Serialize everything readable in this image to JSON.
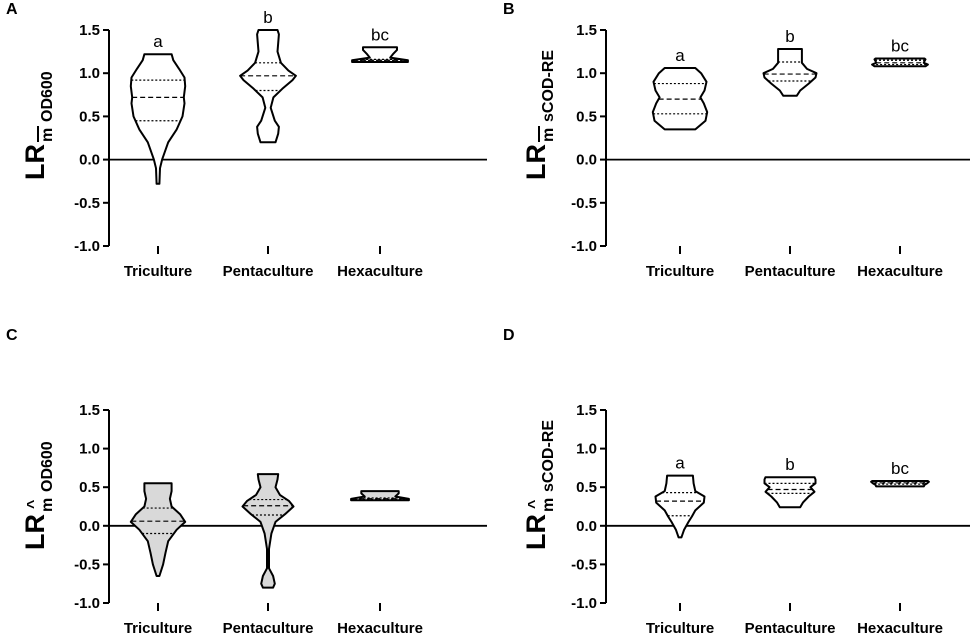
{
  "chart_data": [
    {
      "type": "violin",
      "panel_label": "A",
      "ylabel": {
        "main": "LR",
        "sub": "m",
        "sub_mark": "bar",
        "metric": "OD600"
      },
      "ylim": [
        -1.0,
        1.5
      ],
      "yticks": [
        "-1.0",
        "-0.5",
        "0.0",
        "0.5",
        "1.0",
        "1.5"
      ],
      "categories": [
        "Triculture",
        "Pentaculture",
        "Hexaculture"
      ],
      "fill": "#ffffff",
      "series": [
        {
          "min": -0.28,
          "max": 1.22,
          "q1": 0.45,
          "median": 0.72,
          "q3": 0.92,
          "letter": "a",
          "profile": [
            [
              -0.28,
              0.04
            ],
            [
              -0.1,
              0.06
            ],
            [
              0.0,
              0.12
            ],
            [
              0.2,
              0.3
            ],
            [
              0.35,
              0.55
            ],
            [
              0.5,
              0.72
            ],
            [
              0.65,
              0.78
            ],
            [
              0.72,
              0.76
            ],
            [
              0.85,
              0.8
            ],
            [
              0.95,
              0.78
            ],
            [
              1.05,
              0.62
            ],
            [
              1.15,
              0.45
            ],
            [
              1.22,
              0.4
            ]
          ]
        },
        {
          "min": 0.2,
          "max": 1.5,
          "q1": 0.8,
          "median": 0.97,
          "q3": 1.12,
          "letter": "b",
          "profile": [
            [
              0.2,
              0.22
            ],
            [
              0.3,
              0.3
            ],
            [
              0.38,
              0.32
            ],
            [
              0.45,
              0.2
            ],
            [
              0.6,
              0.08
            ],
            [
              0.72,
              0.16
            ],
            [
              0.82,
              0.42
            ],
            [
              0.92,
              0.72
            ],
            [
              0.97,
              0.82
            ],
            [
              1.03,
              0.6
            ],
            [
              1.12,
              0.38
            ],
            [
              1.25,
              0.28
            ],
            [
              1.35,
              0.3
            ],
            [
              1.45,
              0.32
            ],
            [
              1.5,
              0.28
            ]
          ]
        },
        {
          "min": 1.13,
          "max": 1.3,
          "q1": 1.15,
          "median": 1.15,
          "q3": 1.16,
          "letter": "bc",
          "profile": [
            [
              1.13,
              0.82
            ],
            [
              1.15,
              0.82
            ],
            [
              1.18,
              0.3
            ],
            [
              1.22,
              0.38
            ],
            [
              1.27,
              0.5
            ],
            [
              1.3,
              0.5
            ]
          ]
        }
      ]
    },
    {
      "type": "violin",
      "panel_label": "B",
      "ylabel": {
        "main": "LR",
        "sub": "m",
        "sub_mark": "bar",
        "metric": "sCOD-RE"
      },
      "ylim": [
        -1.0,
        1.5
      ],
      "yticks": [
        "-1.0",
        "-0.5",
        "0.0",
        "0.5",
        "1.0",
        "1.5"
      ],
      "categories": [
        "Triculture",
        "Pentaculture",
        "Hexaculture"
      ],
      "fill": "#ffffff",
      "series": [
        {
          "min": 0.35,
          "max": 1.06,
          "q1": 0.53,
          "median": 0.7,
          "q3": 0.88,
          "letter": "a",
          "profile": [
            [
              0.35,
              0.45
            ],
            [
              0.45,
              0.75
            ],
            [
              0.55,
              0.8
            ],
            [
              0.65,
              0.7
            ],
            [
              0.72,
              0.6
            ],
            [
              0.8,
              0.72
            ],
            [
              0.9,
              0.78
            ],
            [
              1.0,
              0.62
            ],
            [
              1.06,
              0.45
            ]
          ]
        },
        {
          "min": 0.74,
          "max": 1.28,
          "q1": 0.91,
          "median": 0.99,
          "q3": 1.13,
          "letter": "b",
          "profile": [
            [
              0.74,
              0.2
            ],
            [
              0.8,
              0.3
            ],
            [
              0.88,
              0.55
            ],
            [
              0.95,
              0.75
            ],
            [
              1.0,
              0.78
            ],
            [
              1.05,
              0.5
            ],
            [
              1.12,
              0.35
            ],
            [
              1.2,
              0.35
            ],
            [
              1.28,
              0.35
            ]
          ]
        },
        {
          "min": 1.08,
          "max": 1.17,
          "q1": 1.1,
          "median": 1.12,
          "q3": 1.15,
          "letter": "bc",
          "profile": [
            [
              1.08,
              0.75
            ],
            [
              1.1,
              0.82
            ],
            [
              1.12,
              0.7
            ],
            [
              1.14,
              0.72
            ],
            [
              1.16,
              0.75
            ],
            [
              1.17,
              0.72
            ]
          ]
        }
      ]
    },
    {
      "type": "violin",
      "panel_label": "C",
      "ylabel": {
        "main": "LR",
        "sub": "m",
        "sub_mark": "hat",
        "metric": "OD600"
      },
      "ylim": [
        -1.0,
        1.5
      ],
      "yticks": [
        "-1.0",
        "-0.5",
        "0.0",
        "0.5",
        "1.0",
        "1.5"
      ],
      "categories": [
        "Triculture",
        "Pentaculture",
        "Hexaculture"
      ],
      "fill": "#d9d9d9",
      "series": [
        {
          "min": -0.65,
          "max": 0.55,
          "q1": -0.1,
          "median": 0.06,
          "q3": 0.23,
          "letter": "",
          "profile": [
            [
              -0.65,
              0.04
            ],
            [
              -0.5,
              0.15
            ],
            [
              -0.35,
              0.22
            ],
            [
              -0.2,
              0.3
            ],
            [
              -0.05,
              0.55
            ],
            [
              0.05,
              0.8
            ],
            [
              0.15,
              0.65
            ],
            [
              0.25,
              0.4
            ],
            [
              0.35,
              0.35
            ],
            [
              0.45,
              0.4
            ],
            [
              0.55,
              0.4
            ]
          ]
        },
        {
          "min": -0.8,
          "max": 0.67,
          "q1": 0.14,
          "median": 0.26,
          "q3": 0.34,
          "letter": "",
          "profile": [
            [
              -0.8,
              0.15
            ],
            [
              -0.75,
              0.2
            ],
            [
              -0.65,
              0.15
            ],
            [
              -0.55,
              0.03
            ],
            [
              -0.3,
              0.03
            ],
            [
              -0.1,
              0.1
            ],
            [
              0.05,
              0.22
            ],
            [
              0.15,
              0.5
            ],
            [
              0.25,
              0.75
            ],
            [
              0.32,
              0.62
            ],
            [
              0.4,
              0.35
            ],
            [
              0.5,
              0.22
            ],
            [
              0.6,
              0.28
            ],
            [
              0.67,
              0.3
            ]
          ]
        },
        {
          "min": 0.33,
          "max": 0.45,
          "q1": 0.34,
          "median": 0.35,
          "q3": 0.36,
          "letter": "",
          "profile": [
            [
              0.33,
              0.85
            ],
            [
              0.35,
              0.85
            ],
            [
              0.38,
              0.45
            ],
            [
              0.42,
              0.55
            ],
            [
              0.45,
              0.55
            ]
          ]
        }
      ]
    },
    {
      "type": "violin",
      "panel_label": "D",
      "ylabel": {
        "main": "LR",
        "sub": "m",
        "sub_mark": "hat",
        "metric": "sCOD-RE"
      },
      "ylim": [
        -1.0,
        1.5
      ],
      "yticks": [
        "-1.0",
        "-0.5",
        "0.0",
        "0.5",
        "1.0",
        "1.5"
      ],
      "categories": [
        "Triculture",
        "Pentaculture",
        "Hexaculture"
      ],
      "fill": "#ffffff",
      "series": [
        {
          "min": -0.15,
          "max": 0.65,
          "q1": 0.13,
          "median": 0.32,
          "q3": 0.43,
          "letter": "a",
          "profile": [
            [
              -0.15,
              0.04
            ],
            [
              -0.05,
              0.12
            ],
            [
              0.05,
              0.25
            ],
            [
              0.12,
              0.35
            ],
            [
              0.2,
              0.45
            ],
            [
              0.3,
              0.7
            ],
            [
              0.38,
              0.72
            ],
            [
              0.45,
              0.45
            ],
            [
              0.55,
              0.4
            ],
            [
              0.65,
              0.38
            ]
          ]
        },
        {
          "min": 0.24,
          "max": 0.63,
          "q1": 0.42,
          "median": 0.47,
          "q3": 0.55,
          "letter": "b",
          "profile": [
            [
              0.24,
              0.3
            ],
            [
              0.3,
              0.38
            ],
            [
              0.38,
              0.55
            ],
            [
              0.44,
              0.72
            ],
            [
              0.5,
              0.6
            ],
            [
              0.55,
              0.75
            ],
            [
              0.6,
              0.75
            ],
            [
              0.63,
              0.72
            ]
          ]
        },
        {
          "min": 0.51,
          "max": 0.58,
          "q1": 0.54,
          "median": 0.555,
          "q3": 0.57,
          "letter": "bc",
          "profile": [
            [
              0.51,
              0.7
            ],
            [
              0.53,
              0.72
            ],
            [
              0.55,
              0.8
            ],
            [
              0.57,
              0.85
            ],
            [
              0.58,
              0.82
            ]
          ]
        }
      ]
    }
  ]
}
